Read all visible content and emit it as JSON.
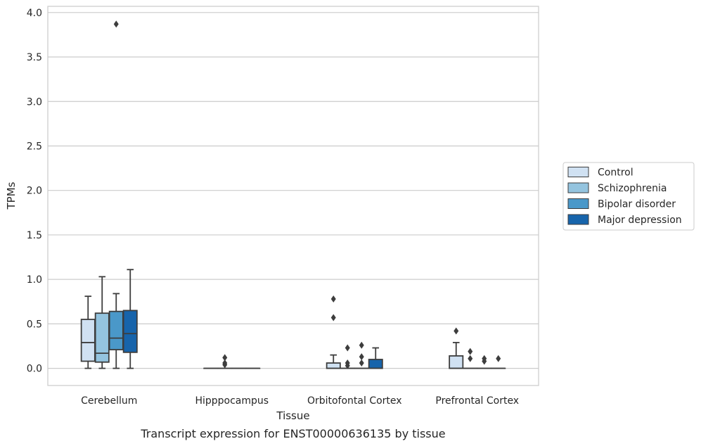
{
  "caption": "Transcript expression for ENST00000636135 by tissue",
  "chart_data": {
    "type": "box",
    "xlabel": "Tissue",
    "ylabel": "TPMs",
    "ylim": [
      -0.18,
      4.07
    ],
    "yticks": [
      "0.0",
      "0.5",
      "1.0",
      "1.5",
      "2.0",
      "2.5",
      "3.0",
      "3.5",
      "4.0"
    ],
    "grid": "horizontal",
    "legend_placement": "right",
    "categories": [
      "Cerebellum",
      "Hipppocampus",
      "Orbitofontal Cortex",
      "Prefrontal Cortex"
    ],
    "series": [
      {
        "name": "Control",
        "color": "#d0e1f2",
        "boxes": [
          {
            "whislo": 0.0,
            "q1": 0.08,
            "med": 0.29,
            "q3": 0.55,
            "whishi": 0.81,
            "fliers": []
          },
          {
            "whislo": 0.0,
            "q1": 0.0,
            "med": 0.0,
            "q3": 0.0,
            "whishi": 0.0,
            "fliers": []
          },
          {
            "whislo": 0.0,
            "q1": 0.0,
            "med": 0.0,
            "q3": 0.06,
            "whishi": 0.15,
            "fliers": [
              0.57,
              0.78
            ]
          },
          {
            "whislo": 0.0,
            "q1": 0.0,
            "med": 0.0,
            "q3": 0.14,
            "whishi": 0.29,
            "fliers": [
              0.42
            ]
          }
        ]
      },
      {
        "name": "Schizophrenia",
        "color": "#94c4df",
        "boxes": [
          {
            "whislo": 0.0,
            "q1": 0.07,
            "med": 0.17,
            "q3": 0.62,
            "whishi": 1.03,
            "fliers": []
          },
          {
            "whislo": 0.0,
            "q1": 0.0,
            "med": 0.0,
            "q3": 0.0,
            "whishi": 0.0,
            "fliers": [
              0.04,
              0.06,
              0.12
            ]
          },
          {
            "whislo": 0.0,
            "q1": 0.0,
            "med": 0.0,
            "q3": 0.0,
            "whishi": 0.0,
            "fliers": [
              0.03,
              0.06,
              0.23
            ]
          },
          {
            "whislo": 0.0,
            "q1": 0.0,
            "med": 0.0,
            "q3": 0.0,
            "whishi": 0.0,
            "fliers": [
              0.11,
              0.19
            ]
          }
        ]
      },
      {
        "name": "Bipolar disorder",
        "color": "#4a98c9",
        "boxes": [
          {
            "whislo": 0.0,
            "q1": 0.21,
            "med": 0.34,
            "q3": 0.64,
            "whishi": 0.84,
            "fliers": [
              3.87
            ]
          },
          {
            "whislo": 0.0,
            "q1": 0.0,
            "med": 0.0,
            "q3": 0.0,
            "whishi": 0.0,
            "fliers": []
          },
          {
            "whislo": 0.0,
            "q1": 0.0,
            "med": 0.0,
            "q3": 0.0,
            "whishi": 0.0,
            "fliers": [
              0.06,
              0.13,
              0.26
            ]
          },
          {
            "whislo": 0.0,
            "q1": 0.0,
            "med": 0.0,
            "q3": 0.0,
            "whishi": 0.0,
            "fliers": [
              0.08,
              0.11
            ]
          }
        ]
      },
      {
        "name": "Major depression",
        "color": "#1764ab",
        "boxes": [
          {
            "whislo": 0.0,
            "q1": 0.18,
            "med": 0.39,
            "q3": 0.65,
            "whishi": 1.11,
            "fliers": []
          },
          {
            "whislo": 0.0,
            "q1": 0.0,
            "med": 0.0,
            "q3": 0.0,
            "whishi": 0.0,
            "fliers": []
          },
          {
            "whislo": 0.0,
            "q1": 0.0,
            "med": 0.0,
            "q3": 0.1,
            "whishi": 0.23,
            "fliers": []
          },
          {
            "whislo": 0.0,
            "q1": 0.0,
            "med": 0.0,
            "q3": 0.0,
            "whishi": 0.0,
            "fliers": [
              0.11
            ]
          }
        ]
      }
    ]
  }
}
